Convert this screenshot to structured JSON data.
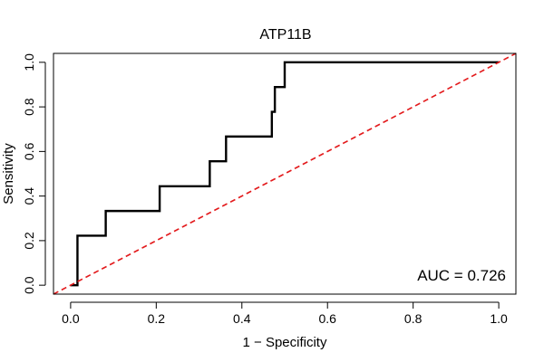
{
  "chart_data": {
    "type": "line",
    "title": "ATP11B",
    "xlabel": "1 − Specificity",
    "ylabel": "Sensitivity",
    "xlim": [
      -0.04,
      1.04
    ],
    "ylim": [
      -0.04,
      1.04
    ],
    "xticks": [
      0.0,
      0.2,
      0.4,
      0.6,
      0.8,
      1.0
    ],
    "xtick_labels": [
      "0.0",
      "0.2",
      "0.4",
      "0.6",
      "0.8",
      "1.0"
    ],
    "yticks": [
      0.0,
      0.2,
      0.4,
      0.6,
      0.8,
      1.0
    ],
    "ytick_labels": [
      "0.0",
      "0.2",
      "0.4",
      "0.6",
      "0.8",
      "1.0"
    ],
    "grid": false,
    "series": [
      {
        "name": "ROC curve",
        "color": "#000000",
        "style": "solid",
        "points": [
          [
            0.0,
            0.0
          ],
          [
            0.016,
            0.0
          ],
          [
            0.016,
            0.222
          ],
          [
            0.082,
            0.222
          ],
          [
            0.082,
            0.333
          ],
          [
            0.208,
            0.333
          ],
          [
            0.208,
            0.444
          ],
          [
            0.325,
            0.444
          ],
          [
            0.325,
            0.556
          ],
          [
            0.363,
            0.556
          ],
          [
            0.363,
            0.667
          ],
          [
            0.47,
            0.667
          ],
          [
            0.47,
            0.778
          ],
          [
            0.477,
            0.778
          ],
          [
            0.477,
            0.889
          ],
          [
            0.5,
            0.889
          ],
          [
            0.5,
            1.0
          ],
          [
            1.0,
            1.0
          ]
        ]
      },
      {
        "name": "reference",
        "color": "#e31a1c",
        "style": "dashed",
        "points": [
          [
            -0.04,
            -0.04
          ],
          [
            1.04,
            1.04
          ]
        ]
      }
    ],
    "annotation": "AUC = 0.726"
  }
}
